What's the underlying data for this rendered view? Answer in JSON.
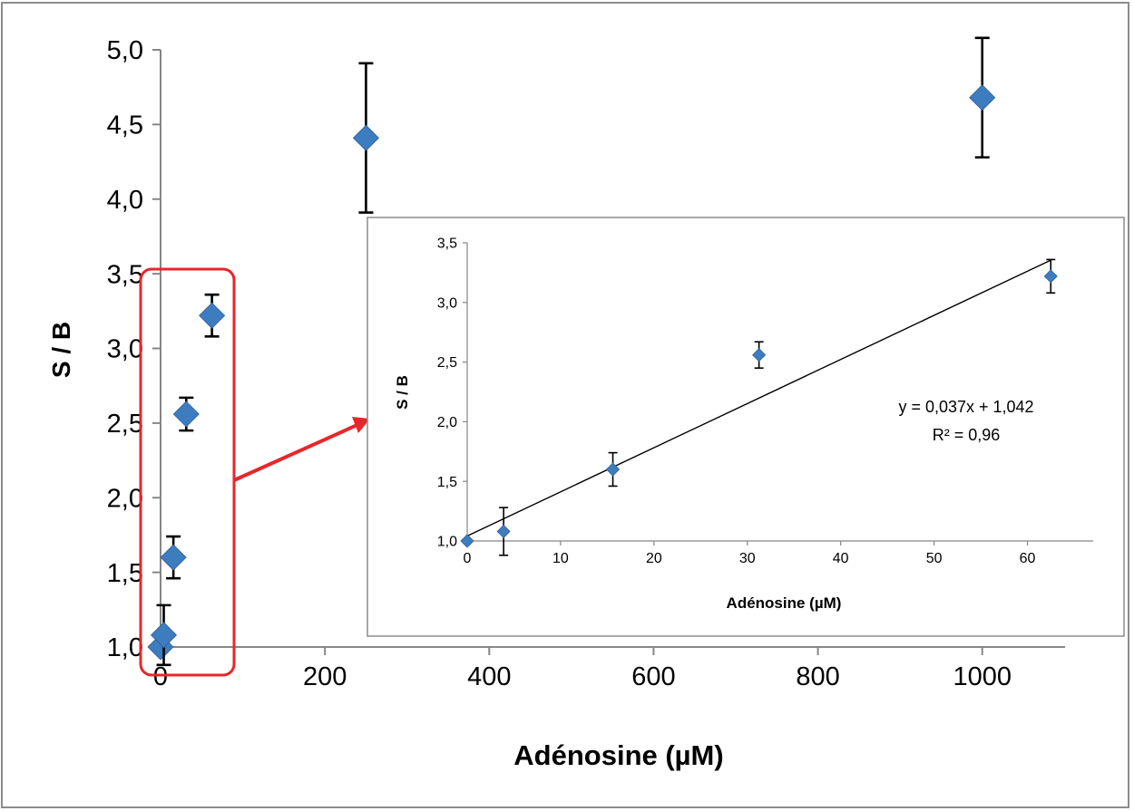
{
  "chart_data": [
    {
      "type": "scatter",
      "xlabel": "Adénosine (µM)",
      "ylabel": "S / B",
      "xlim": [
        0,
        1050
      ],
      "ylim": [
        1.0,
        5.0
      ],
      "x_ticks": [
        0,
        200,
        400,
        600,
        800,
        1000
      ],
      "y_ticks": [
        "1,0",
        "1,5",
        "2,0",
        "2,5",
        "3,0",
        "3,5",
        "4,0",
        "4,5",
        "5,0"
      ],
      "y_tick_values": [
        1.0,
        1.5,
        2.0,
        2.5,
        3.0,
        3.5,
        4.0,
        4.5,
        5.0
      ],
      "series": [
        {
          "x": [
            0,
            3.9,
            15.6,
            31.25,
            62.5,
            250,
            1000
          ],
          "y": [
            1.0,
            1.08,
            1.6,
            2.56,
            3.22,
            4.41,
            4.68
          ],
          "error": [
            0,
            0.2,
            0.14,
            0.11,
            0.14,
            0.5,
            0.4
          ]
        }
      ],
      "grid": false,
      "marker": "diamond",
      "color": "#3E7CC0",
      "highlight_box": {
        "x_range": [
          0,
          62.5
        ],
        "y_range": [
          1.0,
          3.22
        ],
        "color": "#E8262A"
      }
    },
    {
      "type": "scatter",
      "inset": true,
      "xlabel": "Adénosine (µM)",
      "ylabel": "S / B",
      "xlim": [
        0,
        65
      ],
      "ylim": [
        1.0,
        3.5
      ],
      "x_ticks": [
        0,
        10,
        20,
        30,
        40,
        50,
        60
      ],
      "y_ticks": [
        "1,0",
        "1,5",
        "2,0",
        "2,5",
        "3,0",
        "3,5"
      ],
      "y_tick_values": [
        1.0,
        1.5,
        2.0,
        2.5,
        3.0,
        3.5
      ],
      "series": [
        {
          "x": [
            0,
            3.9,
            15.6,
            31.25,
            62.5
          ],
          "y": [
            1.0,
            1.08,
            1.6,
            2.56,
            3.22
          ],
          "error": [
            0,
            0.2,
            0.14,
            0.11,
            0.14
          ]
        }
      ],
      "trendline": {
        "slope": 0.037,
        "intercept": 1.042,
        "x_range": [
          0,
          62.5
        ]
      },
      "annotations": [
        "y = 0,037x + 1,042",
        "R² = 0,96"
      ],
      "grid": false,
      "color": "#3E7CC0"
    }
  ]
}
